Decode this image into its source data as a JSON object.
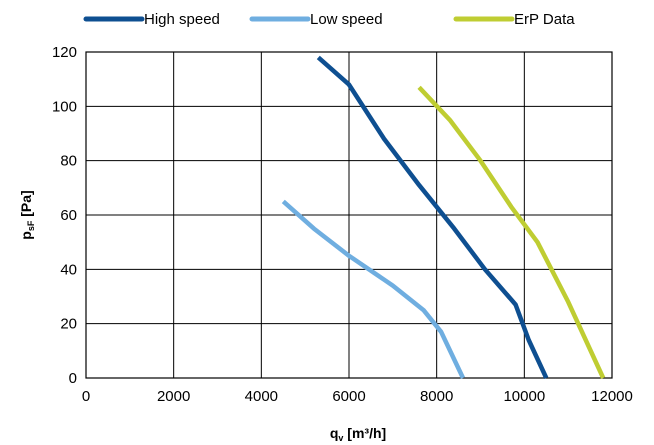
{
  "chart_data": {
    "type": "line",
    "title": "",
    "xlabel": {
      "main": "q",
      "sub": "v",
      "unit": " [m³/h]"
    },
    "ylabel": {
      "main": "p",
      "sub": "sF",
      "unit": " [Pa]"
    },
    "xlim": [
      0,
      12000
    ],
    "ylim": [
      0,
      120
    ],
    "xticks": [
      0,
      2000,
      4000,
      6000,
      8000,
      10000,
      12000
    ],
    "yticks": [
      0,
      20,
      40,
      60,
      80,
      100,
      120
    ],
    "grid": true,
    "legend_position": "top",
    "series": [
      {
        "name": "High speed",
        "color": "#0e4f91",
        "points": [
          [
            5300,
            118
          ],
          [
            6000,
            108
          ],
          [
            6800,
            88
          ],
          [
            7600,
            71
          ],
          [
            8400,
            55
          ],
          [
            9100,
            40
          ],
          [
            9800,
            27
          ],
          [
            10100,
            14
          ],
          [
            10500,
            0
          ]
        ]
      },
      {
        "name": "Low speed",
        "color": "#6faee0",
        "points": [
          [
            4500,
            65
          ],
          [
            5200,
            55
          ],
          [
            6000,
            45
          ],
          [
            7000,
            34
          ],
          [
            7700,
            25
          ],
          [
            8100,
            17
          ],
          [
            8600,
            0
          ]
        ]
      },
      {
        "name": "ErP Data",
        "color": "#bfcd32",
        "points": [
          [
            7600,
            107
          ],
          [
            8300,
            95
          ],
          [
            9000,
            80
          ],
          [
            9700,
            63
          ],
          [
            10300,
            50
          ],
          [
            11000,
            28
          ],
          [
            11800,
            0
          ]
        ]
      }
    ]
  }
}
